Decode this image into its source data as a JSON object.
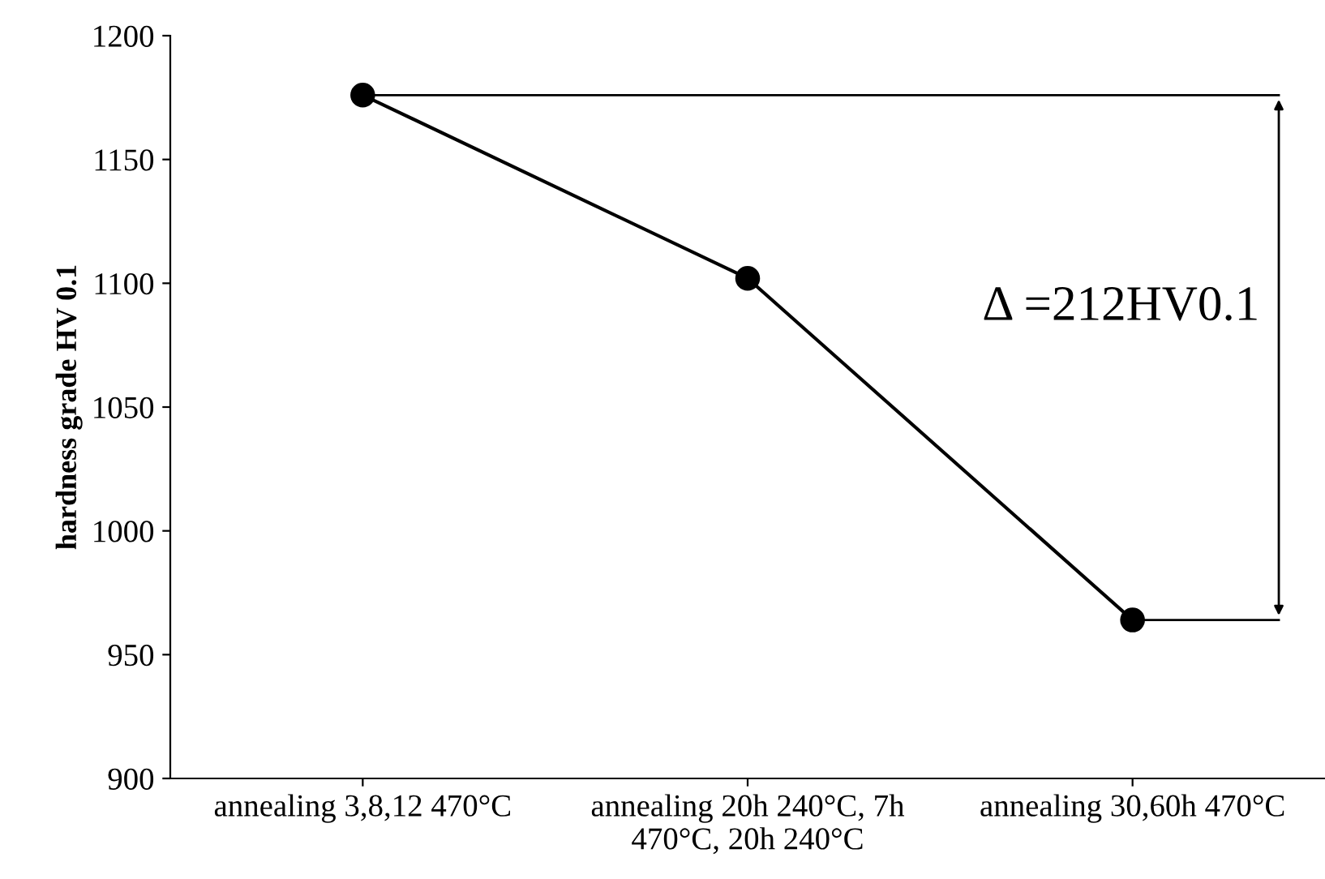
{
  "chart_data": {
    "type": "line",
    "categories": [
      "annealing 3,8,12 470°C",
      "annealing 20h 240°C, 7h\n470°C, 20h 240°C",
      "annealing 30,60h 470°C"
    ],
    "values": [
      1176,
      1102,
      964
    ],
    "color": "#000000",
    "marker": "circle",
    "line_style": "solid",
    "ylabel": "hardness grade HV 0.1",
    "ylim": [
      900,
      1200
    ],
    "yticks": [
      900,
      950,
      1000,
      1050,
      1100,
      1150,
      1200
    ],
    "annotations": [
      "Δ =212HV0.1"
    ],
    "ref_lines": [
      {
        "axis": "y",
        "value": 1176,
        "color": "#000000",
        "line_style": "solid"
      },
      {
        "axis": "y",
        "value": 964,
        "color": "#000000",
        "line_style": "solid"
      }
    ],
    "grid": false,
    "legend": false
  }
}
